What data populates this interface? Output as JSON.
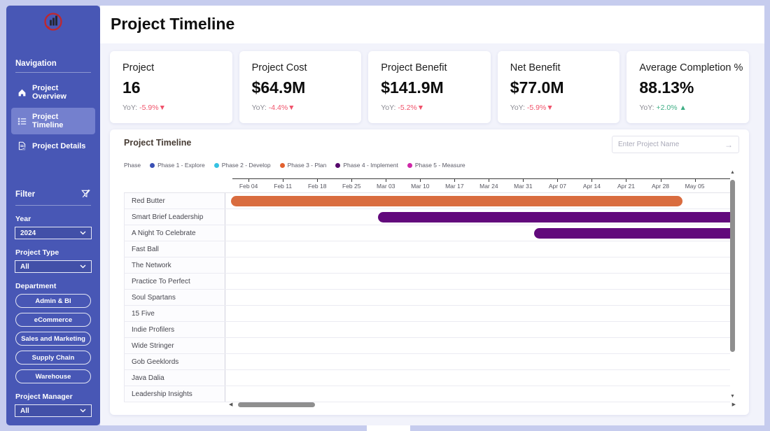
{
  "page": {
    "title": "Project Timeline"
  },
  "colors": {
    "negative": "#f0536b",
    "positive": "#3fae85",
    "sidebar": "#4857b5",
    "sidebar_active": "#7480ce"
  },
  "sidebar": {
    "nav_label": "Navigation",
    "items": [
      {
        "label": "Project Overview",
        "icon": "home-icon",
        "active": false
      },
      {
        "label": "Project Timeline",
        "icon": "timeline-list-icon",
        "active": true
      },
      {
        "label": "Project Details",
        "icon": "document-icon",
        "active": false
      }
    ],
    "filter": {
      "label": "Filter",
      "year_label": "Year",
      "year_value": "2024",
      "project_type_label": "Project Type",
      "project_type_value": "All",
      "department_label": "Department",
      "departments": [
        "Admin & BI",
        "eCommerce",
        "Sales and Marketing",
        "Supply Chain",
        "Warehouse"
      ],
      "project_manager_label": "Project Manager",
      "project_manager_value": "All"
    }
  },
  "kpis": [
    {
      "label": "Project",
      "value": "16",
      "yoy_prefix": "YoY:",
      "yoy": "-5.9%",
      "direction": "down"
    },
    {
      "label": "Project Cost",
      "value": "$64.9M",
      "yoy_prefix": "YoY:",
      "yoy": "-4.4%",
      "direction": "down"
    },
    {
      "label": "Project Benefit",
      "value": "$141.9M",
      "yoy_prefix": "YoY:",
      "yoy": "-5.2%",
      "direction": "down"
    },
    {
      "label": "Net Benefit",
      "value": "$77.0M",
      "yoy_prefix": "YoY:",
      "yoy": "-5.9%",
      "direction": "down"
    },
    {
      "label": "Average Completion %",
      "value": "88.13%",
      "yoy_prefix": "YoY:",
      "yoy": "+2.0%",
      "direction": "up"
    }
  ],
  "chart": {
    "title": "Project Timeline",
    "search_placeholder": "Enter Project Name",
    "legend_label": "Phase",
    "legend": [
      {
        "label": "Phase 1 - Explore",
        "color": "#3a50b4"
      },
      {
        "label": "Phase 2 - Develop",
        "color": "#35c2e2"
      },
      {
        "label": "Phase 3 - Plan",
        "color": "#e2612f"
      },
      {
        "label": "Phase 4 - Implement",
        "color": "#55076b"
      },
      {
        "label": "Phase 5 - Measure",
        "color": "#cf28a8"
      }
    ],
    "chart_data": {
      "type": "gantt",
      "x_ticks": [
        "Feb 04",
        "Feb 11",
        "Feb 18",
        "Feb 25",
        "Mar 03",
        "Mar 10",
        "Mar 17",
        "Mar 24",
        "Mar 31",
        "Apr 07",
        "Apr 14",
        "Apr 21",
        "Apr 28",
        "May 05"
      ],
      "rows": [
        {
          "name": "Red Butter",
          "phase": "Phase 3 - Plan",
          "start_pct": 1.1,
          "end_pct": 90.6,
          "color": "#d96c3f"
        },
        {
          "name": "Smart Brief Leadership",
          "phase": "Phase 4 - Implement",
          "start_pct": 30.2,
          "end_pct": 100,
          "color": "#62097c"
        },
        {
          "name": "A Night To Celebrate",
          "phase": "Phase 4 - Implement",
          "start_pct": 61.2,
          "end_pct": 100,
          "color": "#62097c"
        },
        {
          "name": "Fast Ball"
        },
        {
          "name": "The Network"
        },
        {
          "name": "Practice To Perfect"
        },
        {
          "name": "Soul Spartans"
        },
        {
          "name": "15 Five"
        },
        {
          "name": "Indie Profilers"
        },
        {
          "name": "Wide Stringer"
        },
        {
          "name": "Gob Geeklords"
        },
        {
          "name": "Java Dalia"
        },
        {
          "name": "Leadership Insights"
        }
      ]
    }
  }
}
